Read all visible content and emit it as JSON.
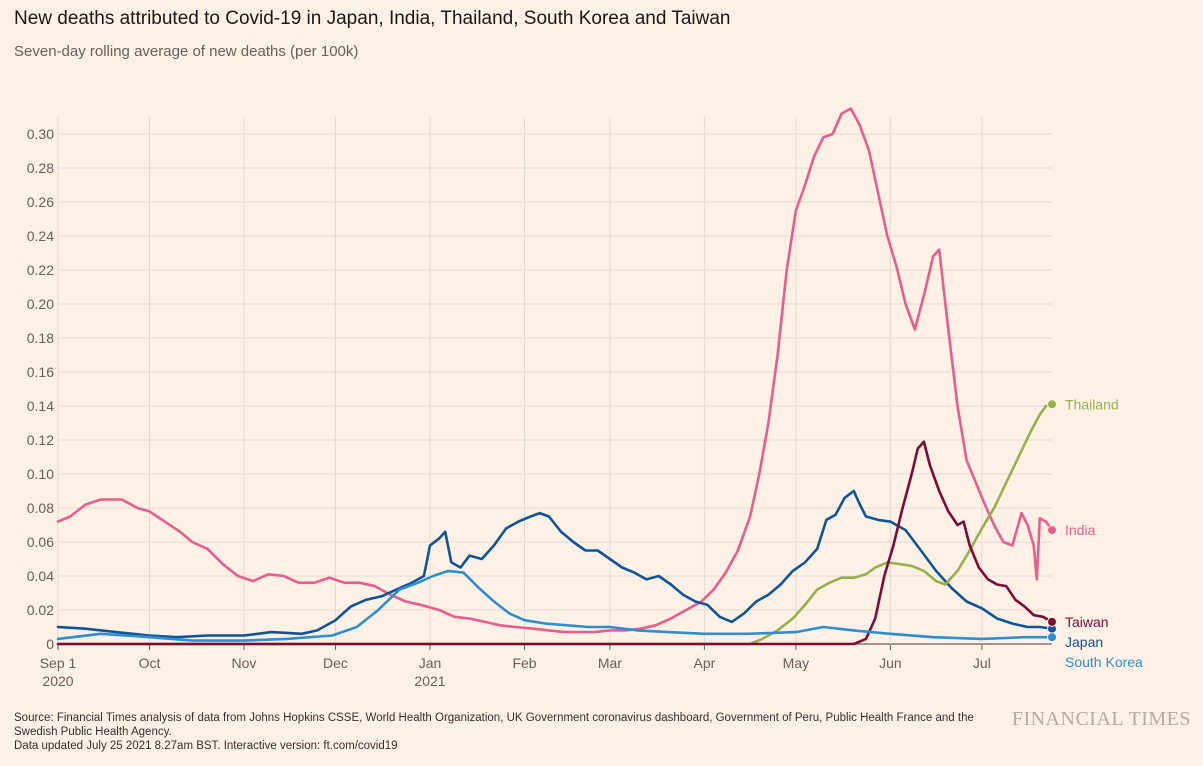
{
  "title": "New deaths attributed to Covid-19 in Japan, India, Thailand, South Korea and Taiwan",
  "subtitle": "Seven-day rolling average of new deaths (per 100k)",
  "source": "Source: Financial Times analysis of data from Johns Hopkins CSSE, World Health Organization, UK Government coronavirus dashboard, Government of Peru, Public Health France and the Swedish Public Health Agency.",
  "updated": "Data updated July 25 2021 8.27am BST. Interactive version: ft.com/covid19",
  "brand": "FINANCIAL TIMES",
  "chart_data": {
    "type": "line",
    "title": "New deaths attributed to Covid-19 in Japan, India, Thailand, South Korea and Taiwan",
    "subtitle": "Seven-day rolling average of new deaths (per 100k)",
    "ylim": [
      0,
      0.31
    ],
    "y_ticks": [
      0,
      0.02,
      0.04,
      0.06,
      0.08,
      0.1,
      0.12,
      0.14,
      0.16,
      0.18,
      0.2,
      0.22,
      0.24,
      0.26,
      0.28,
      0.3
    ],
    "y_tick_labels": [
      "0",
      "0.02",
      "0.04",
      "0.06",
      "0.08",
      "0.10",
      "0.12",
      "0.14",
      "0.16",
      "0.18",
      "0.20",
      "0.22",
      "0.24",
      "0.26",
      "0.28",
      "0.30"
    ],
    "xlim": [
      "2020-09-01",
      "2021-07-24"
    ],
    "x_ticks": [
      {
        "date": "2020-09-01",
        "label": "Sep 1",
        "sub": "2020"
      },
      {
        "date": "2020-10-01",
        "label": "Oct",
        "sub": ""
      },
      {
        "date": "2020-11-01",
        "label": "Nov",
        "sub": ""
      },
      {
        "date": "2020-12-01",
        "label": "Dec",
        "sub": ""
      },
      {
        "date": "2021-01-01",
        "label": "Jan",
        "sub": "2021"
      },
      {
        "date": "2021-02-01",
        "label": "Feb",
        "sub": ""
      },
      {
        "date": "2021-03-01",
        "label": "Mar",
        "sub": ""
      },
      {
        "date": "2021-04-01",
        "label": "Apr",
        "sub": ""
      },
      {
        "date": "2021-05-01",
        "label": "May",
        "sub": ""
      },
      {
        "date": "2021-06-01",
        "label": "Jun",
        "sub": ""
      },
      {
        "date": "2021-07-01",
        "label": "Jul",
        "sub": ""
      }
    ],
    "grid": true,
    "legend": "inline-right",
    "series": [
      {
        "name": "India",
        "color": "#e95d8c",
        "points": [
          [
            "2020-09-01",
            0.072
          ],
          [
            "2020-09-05",
            0.075
          ],
          [
            "2020-09-10",
            0.082
          ],
          [
            "2020-09-15",
            0.085
          ],
          [
            "2020-09-22",
            0.085
          ],
          [
            "2020-09-27",
            0.08
          ],
          [
            "2020-10-01",
            0.078
          ],
          [
            "2020-10-06",
            0.072
          ],
          [
            "2020-10-11",
            0.066
          ],
          [
            "2020-10-15",
            0.06
          ],
          [
            "2020-10-20",
            0.056
          ],
          [
            "2020-10-25",
            0.047
          ],
          [
            "2020-10-30",
            0.04
          ],
          [
            "2020-11-04",
            0.037
          ],
          [
            "2020-11-09",
            0.041
          ],
          [
            "2020-11-14",
            0.04
          ],
          [
            "2020-11-19",
            0.036
          ],
          [
            "2020-11-24",
            0.036
          ],
          [
            "2020-11-29",
            0.039
          ],
          [
            "2020-12-04",
            0.036
          ],
          [
            "2020-12-09",
            0.036
          ],
          [
            "2020-12-14",
            0.034
          ],
          [
            "2020-12-19",
            0.029
          ],
          [
            "2020-12-24",
            0.025
          ],
          [
            "2020-12-29",
            0.023
          ],
          [
            "2021-01-04",
            0.02
          ],
          [
            "2021-01-09",
            0.016
          ],
          [
            "2021-01-14",
            0.015
          ],
          [
            "2021-01-19",
            0.013
          ],
          [
            "2021-01-24",
            0.011
          ],
          [
            "2021-01-29",
            0.01
          ],
          [
            "2021-02-04",
            0.009
          ],
          [
            "2021-02-09",
            0.008
          ],
          [
            "2021-02-14",
            0.007
          ],
          [
            "2021-02-19",
            0.007
          ],
          [
            "2021-02-24",
            0.007
          ],
          [
            "2021-03-01",
            0.008
          ],
          [
            "2021-03-06",
            0.008
          ],
          [
            "2021-03-11",
            0.009
          ],
          [
            "2021-03-16",
            0.011
          ],
          [
            "2021-03-21",
            0.015
          ],
          [
            "2021-03-26",
            0.02
          ],
          [
            "2021-03-31",
            0.025
          ],
          [
            "2021-04-04",
            0.032
          ],
          [
            "2021-04-08",
            0.042
          ],
          [
            "2021-04-12",
            0.055
          ],
          [
            "2021-04-16",
            0.075
          ],
          [
            "2021-04-19",
            0.1
          ],
          [
            "2021-04-22",
            0.13
          ],
          [
            "2021-04-25",
            0.17
          ],
          [
            "2021-04-28",
            0.22
          ],
          [
            "2021-05-01",
            0.255
          ],
          [
            "2021-05-04",
            0.27
          ],
          [
            "2021-05-07",
            0.287
          ],
          [
            "2021-05-10",
            0.298
          ],
          [
            "2021-05-13",
            0.3
          ],
          [
            "2021-05-16",
            0.312
          ],
          [
            "2021-05-19",
            0.315
          ],
          [
            "2021-05-22",
            0.305
          ],
          [
            "2021-05-25",
            0.29
          ],
          [
            "2021-05-28",
            0.265
          ],
          [
            "2021-05-31",
            0.24
          ],
          [
            "2021-06-03",
            0.222
          ],
          [
            "2021-06-06",
            0.2
          ],
          [
            "2021-06-09",
            0.185
          ],
          [
            "2021-06-12",
            0.205
          ],
          [
            "2021-06-15",
            0.228
          ],
          [
            "2021-06-17",
            0.232
          ],
          [
            "2021-06-20",
            0.185
          ],
          [
            "2021-06-23",
            0.14
          ],
          [
            "2021-06-26",
            0.108
          ],
          [
            "2021-06-29",
            0.095
          ],
          [
            "2021-07-02",
            0.082
          ],
          [
            "2021-07-05",
            0.07
          ],
          [
            "2021-07-08",
            0.06
          ],
          [
            "2021-07-11",
            0.058
          ],
          [
            "2021-07-14",
            0.077
          ],
          [
            "2021-07-16",
            0.07
          ],
          [
            "2021-07-18",
            0.058
          ],
          [
            "2021-07-19",
            0.038
          ],
          [
            "2021-07-20",
            0.074
          ],
          [
            "2021-07-22",
            0.072
          ],
          [
            "2021-07-24",
            0.067
          ]
        ]
      },
      {
        "name": "Japan",
        "color": "#0f5499",
        "points": [
          [
            "2020-09-01",
            0.01
          ],
          [
            "2020-09-10",
            0.009
          ],
          [
            "2020-09-20",
            0.007
          ],
          [
            "2020-10-01",
            0.005
          ],
          [
            "2020-10-10",
            0.004
          ],
          [
            "2020-10-20",
            0.005
          ],
          [
            "2020-11-01",
            0.005
          ],
          [
            "2020-11-10",
            0.007
          ],
          [
            "2020-11-20",
            0.006
          ],
          [
            "2020-11-25",
            0.008
          ],
          [
            "2020-12-01",
            0.014
          ],
          [
            "2020-12-06",
            0.022
          ],
          [
            "2020-12-11",
            0.026
          ],
          [
            "2020-12-16",
            0.028
          ],
          [
            "2020-12-21",
            0.032
          ],
          [
            "2020-12-26",
            0.036
          ],
          [
            "2020-12-30",
            0.04
          ],
          [
            "2021-01-01",
            0.058
          ],
          [
            "2021-01-04",
            0.062
          ],
          [
            "2021-01-06",
            0.066
          ],
          [
            "2021-01-08",
            0.048
          ],
          [
            "2021-01-11",
            0.045
          ],
          [
            "2021-01-14",
            0.052
          ],
          [
            "2021-01-18",
            0.05
          ],
          [
            "2021-01-22",
            0.058
          ],
          [
            "2021-01-26",
            0.068
          ],
          [
            "2021-01-30",
            0.072
          ],
          [
            "2021-02-03",
            0.075
          ],
          [
            "2021-02-06",
            0.077
          ],
          [
            "2021-02-09",
            0.075
          ],
          [
            "2021-02-13",
            0.066
          ],
          [
            "2021-02-17",
            0.06
          ],
          [
            "2021-02-21",
            0.055
          ],
          [
            "2021-02-25",
            0.055
          ],
          [
            "2021-03-01",
            0.05
          ],
          [
            "2021-03-05",
            0.045
          ],
          [
            "2021-03-09",
            0.042
          ],
          [
            "2021-03-13",
            0.038
          ],
          [
            "2021-03-17",
            0.04
          ],
          [
            "2021-03-21",
            0.035
          ],
          [
            "2021-03-25",
            0.029
          ],
          [
            "2021-03-29",
            0.025
          ],
          [
            "2021-04-02",
            0.023
          ],
          [
            "2021-04-06",
            0.016
          ],
          [
            "2021-04-10",
            0.013
          ],
          [
            "2021-04-14",
            0.018
          ],
          [
            "2021-04-18",
            0.025
          ],
          [
            "2021-04-22",
            0.029
          ],
          [
            "2021-04-26",
            0.035
          ],
          [
            "2021-04-30",
            0.043
          ],
          [
            "2021-05-04",
            0.048
          ],
          [
            "2021-05-08",
            0.056
          ],
          [
            "2021-05-11",
            0.073
          ],
          [
            "2021-05-14",
            0.076
          ],
          [
            "2021-05-17",
            0.086
          ],
          [
            "2021-05-20",
            0.09
          ],
          [
            "2021-05-22",
            0.082
          ],
          [
            "2021-05-24",
            0.075
          ],
          [
            "2021-05-28",
            0.073
          ],
          [
            "2021-06-01",
            0.072
          ],
          [
            "2021-06-06",
            0.067
          ],
          [
            "2021-06-11",
            0.055
          ],
          [
            "2021-06-16",
            0.043
          ],
          [
            "2021-06-21",
            0.033
          ],
          [
            "2021-06-26",
            0.025
          ],
          [
            "2021-07-01",
            0.021
          ],
          [
            "2021-07-06",
            0.015
          ],
          [
            "2021-07-11",
            0.012
          ],
          [
            "2021-07-16",
            0.01
          ],
          [
            "2021-07-20",
            0.01
          ],
          [
            "2021-07-24",
            0.009
          ]
        ]
      },
      {
        "name": "Thailand",
        "color": "#96b14a",
        "points": [
          [
            "2020-09-01",
            0.0
          ],
          [
            "2021-04-16",
            0.0
          ],
          [
            "2021-04-20",
            0.003
          ],
          [
            "2021-04-25",
            0.008
          ],
          [
            "2021-04-30",
            0.015
          ],
          [
            "2021-05-04",
            0.023
          ],
          [
            "2021-05-08",
            0.032
          ],
          [
            "2021-05-12",
            0.036
          ],
          [
            "2021-05-16",
            0.039
          ],
          [
            "2021-05-20",
            0.039
          ],
          [
            "2021-05-24",
            0.041
          ],
          [
            "2021-05-27",
            0.045
          ],
          [
            "2021-05-31",
            0.048
          ],
          [
            "2021-06-04",
            0.047
          ],
          [
            "2021-06-08",
            0.046
          ],
          [
            "2021-06-12",
            0.043
          ],
          [
            "2021-06-16",
            0.037
          ],
          [
            "2021-06-19",
            0.035
          ],
          [
            "2021-06-23",
            0.043
          ],
          [
            "2021-06-27",
            0.055
          ],
          [
            "2021-07-01",
            0.068
          ],
          [
            "2021-07-05",
            0.08
          ],
          [
            "2021-07-09",
            0.095
          ],
          [
            "2021-07-13",
            0.11
          ],
          [
            "2021-07-17",
            0.125
          ],
          [
            "2021-07-20",
            0.135
          ],
          [
            "2021-07-22",
            0.14
          ],
          [
            "2021-07-24",
            0.141
          ]
        ]
      },
      {
        "name": "Taiwan",
        "color": "#7d0b36",
        "points": [
          [
            "2020-09-01",
            0.0
          ],
          [
            "2021-05-20",
            0.0
          ],
          [
            "2021-05-24",
            0.003
          ],
          [
            "2021-05-27",
            0.015
          ],
          [
            "2021-05-30",
            0.04
          ],
          [
            "2021-06-02",
            0.058
          ],
          [
            "2021-06-05",
            0.08
          ],
          [
            "2021-06-08",
            0.1
          ],
          [
            "2021-06-10",
            0.115
          ],
          [
            "2021-06-12",
            0.119
          ],
          [
            "2021-06-14",
            0.105
          ],
          [
            "2021-06-17",
            0.09
          ],
          [
            "2021-06-20",
            0.078
          ],
          [
            "2021-06-23",
            0.07
          ],
          [
            "2021-06-25",
            0.072
          ],
          [
            "2021-06-27",
            0.058
          ],
          [
            "2021-06-30",
            0.045
          ],
          [
            "2021-07-03",
            0.038
          ],
          [
            "2021-07-06",
            0.035
          ],
          [
            "2021-07-09",
            0.034
          ],
          [
            "2021-07-12",
            0.026
          ],
          [
            "2021-07-15",
            0.022
          ],
          [
            "2021-07-18",
            0.017
          ],
          [
            "2021-07-21",
            0.016
          ],
          [
            "2021-07-24",
            0.013
          ]
        ]
      },
      {
        "name": "South Korea",
        "color": "#2e8ed0",
        "points": [
          [
            "2020-09-01",
            0.003
          ],
          [
            "2020-09-15",
            0.006
          ],
          [
            "2020-10-01",
            0.004
          ],
          [
            "2020-10-15",
            0.002
          ],
          [
            "2020-11-01",
            0.002
          ],
          [
            "2020-11-15",
            0.003
          ],
          [
            "2020-11-30",
            0.005
          ],
          [
            "2020-12-08",
            0.01
          ],
          [
            "2020-12-15",
            0.02
          ],
          [
            "2020-12-22",
            0.032
          ],
          [
            "2020-12-28",
            0.036
          ],
          [
            "2021-01-02",
            0.04
          ],
          [
            "2021-01-07",
            0.043
          ],
          [
            "2021-01-12",
            0.042
          ],
          [
            "2021-01-17",
            0.033
          ],
          [
            "2021-01-22",
            0.025
          ],
          [
            "2021-01-27",
            0.018
          ],
          [
            "2021-02-01",
            0.014
          ],
          [
            "2021-02-08",
            0.012
          ],
          [
            "2021-02-15",
            0.011
          ],
          [
            "2021-02-22",
            0.01
          ],
          [
            "2021-03-01",
            0.01
          ],
          [
            "2021-03-10",
            0.008
          ],
          [
            "2021-03-20",
            0.007
          ],
          [
            "2021-04-01",
            0.006
          ],
          [
            "2021-04-15",
            0.006
          ],
          [
            "2021-05-01",
            0.007
          ],
          [
            "2021-05-10",
            0.01
          ],
          [
            "2021-05-20",
            0.008
          ],
          [
            "2021-06-01",
            0.006
          ],
          [
            "2021-06-15",
            0.004
          ],
          [
            "2021-07-01",
            0.003
          ],
          [
            "2021-07-15",
            0.004
          ],
          [
            "2021-07-24",
            0.004
          ]
        ]
      }
    ]
  }
}
